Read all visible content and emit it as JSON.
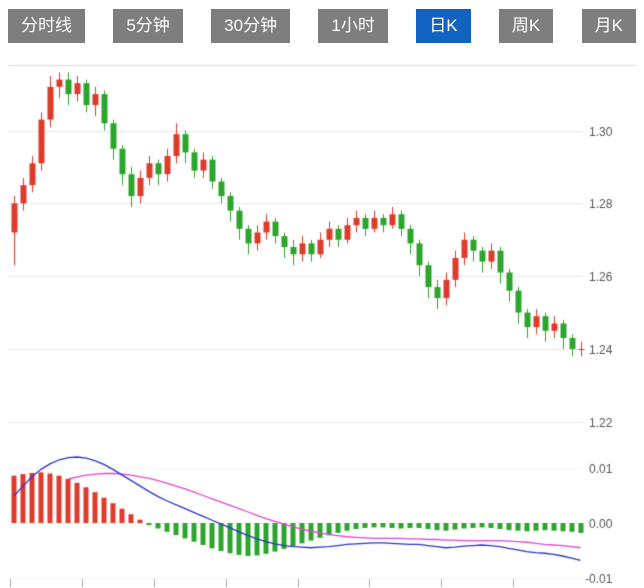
{
  "tabs": [
    {
      "label": "分时线",
      "active": false
    },
    {
      "label": "5分钟",
      "active": false
    },
    {
      "label": "30分钟",
      "active": false
    },
    {
      "label": "1小时",
      "active": false
    },
    {
      "label": "日K",
      "active": true
    },
    {
      "label": "周K",
      "active": false
    },
    {
      "label": "月K",
      "active": false
    }
  ],
  "colors": {
    "up": "#dd3b2b",
    "down": "#2ca52c",
    "dif_line": "#2b35c8",
    "dea_line": "#e544d5",
    "grid": "#e8e8e8",
    "grid_light": "#f2f2f2",
    "panel_border": "#d9d9d9",
    "axis_text": "#555555",
    "tab_bg": "#7e7e7e",
    "tab_active_bg": "#1262c2"
  },
  "chart_data": [
    {
      "type": "candlestick",
      "title": "",
      "legend": "none",
      "grid": "horizontal",
      "axis_side": "right",
      "y_tick_labels": [
        "1.30",
        "1.28",
        "1.26",
        "1.24",
        "1.22"
      ],
      "y_ticks": [
        1.3,
        1.28,
        1.26,
        1.24,
        1.22
      ],
      "ylim": [
        1.215,
        1.318
      ],
      "candles_ohlc": [
        [
          1.272,
          1.282,
          1.263,
          1.28
        ],
        [
          1.28,
          1.287,
          1.278,
          1.285
        ],
        [
          1.285,
          1.293,
          1.283,
          1.291
        ],
        [
          1.291,
          1.305,
          1.289,
          1.303
        ],
        [
          1.303,
          1.315,
          1.301,
          1.312
        ],
        [
          1.312,
          1.316,
          1.309,
          1.314
        ],
        [
          1.314,
          1.316,
          1.307,
          1.31
        ],
        [
          1.31,
          1.315,
          1.308,
          1.313
        ],
        [
          1.313,
          1.314,
          1.305,
          1.307
        ],
        [
          1.307,
          1.312,
          1.304,
          1.31
        ],
        [
          1.31,
          1.311,
          1.3,
          1.302
        ],
        [
          1.302,
          1.303,
          1.292,
          1.295
        ],
        [
          1.295,
          1.296,
          1.285,
          1.288
        ],
        [
          1.288,
          1.29,
          1.279,
          1.282
        ],
        [
          1.282,
          1.289,
          1.28,
          1.287
        ],
        [
          1.287,
          1.293,
          1.285,
          1.291
        ],
        [
          1.291,
          1.292,
          1.285,
          1.288
        ],
        [
          1.288,
          1.295,
          1.286,
          1.293
        ],
        [
          1.293,
          1.302,
          1.291,
          1.299
        ],
        [
          1.299,
          1.3,
          1.291,
          1.294
        ],
        [
          1.294,
          1.295,
          1.287,
          1.289
        ],
        [
          1.289,
          1.294,
          1.287,
          1.292
        ],
        [
          1.292,
          1.293,
          1.284,
          1.286
        ],
        [
          1.286,
          1.287,
          1.28,
          1.282
        ],
        [
          1.282,
          1.283,
          1.275,
          1.278
        ],
        [
          1.278,
          1.279,
          1.27,
          1.273
        ],
        [
          1.273,
          1.274,
          1.266,
          1.269
        ],
        [
          1.269,
          1.274,
          1.267,
          1.272
        ],
        [
          1.272,
          1.277,
          1.27,
          1.275
        ],
        [
          1.275,
          1.276,
          1.269,
          1.271
        ],
        [
          1.271,
          1.272,
          1.265,
          1.268
        ],
        [
          1.268,
          1.27,
          1.263,
          1.266
        ],
        [
          1.266,
          1.271,
          1.264,
          1.269
        ],
        [
          1.269,
          1.27,
          1.264,
          1.266
        ],
        [
          1.266,
          1.272,
          1.265,
          1.27
        ],
        [
          1.27,
          1.275,
          1.268,
          1.273
        ],
        [
          1.273,
          1.274,
          1.268,
          1.27
        ],
        [
          1.27,
          1.276,
          1.269,
          1.274
        ],
        [
          1.274,
          1.278,
          1.272,
          1.276
        ],
        [
          1.276,
          1.277,
          1.271,
          1.273
        ],
        [
          1.273,
          1.278,
          1.272,
          1.276
        ],
        [
          1.276,
          1.277,
          1.272,
          1.274
        ],
        [
          1.274,
          1.279,
          1.273,
          1.277
        ],
        [
          1.277,
          1.278,
          1.271,
          1.273
        ],
        [
          1.273,
          1.274,
          1.266,
          1.269
        ],
        [
          1.269,
          1.27,
          1.26,
          1.263
        ],
        [
          1.263,
          1.264,
          1.254,
          1.257
        ],
        [
          1.257,
          1.259,
          1.251,
          1.254
        ],
        [
          1.254,
          1.261,
          1.252,
          1.259
        ],
        [
          1.259,
          1.267,
          1.257,
          1.265
        ],
        [
          1.265,
          1.272,
          1.263,
          1.27
        ],
        [
          1.27,
          1.271,
          1.264,
          1.267
        ],
        [
          1.267,
          1.268,
          1.261,
          1.264
        ],
        [
          1.264,
          1.269,
          1.262,
          1.267
        ],
        [
          1.267,
          1.268,
          1.258,
          1.261
        ],
        [
          1.261,
          1.262,
          1.253,
          1.256
        ],
        [
          1.256,
          1.257,
          1.247,
          1.25
        ],
        [
          1.25,
          1.251,
          1.243,
          1.246
        ],
        [
          1.246,
          1.251,
          1.244,
          1.249
        ],
        [
          1.249,
          1.25,
          1.242,
          1.245
        ],
        [
          1.245,
          1.249,
          1.243,
          1.247
        ],
        [
          1.247,
          1.248,
          1.24,
          1.243
        ],
        [
          1.243,
          1.244,
          1.238,
          1.24
        ],
        [
          1.24,
          1.242,
          1.238,
          1.24
        ]
      ]
    },
    {
      "type": "macd",
      "title": "",
      "grid": "horizontal",
      "axis_side": "right",
      "y_tick_labels": [
        "0.01",
        "0.00",
        "-0.01"
      ],
      "y_ticks": [
        0.01,
        0.0,
        -0.01
      ],
      "ylim": [
        -0.011,
        0.0125
      ],
      "hist": [
        0.0086,
        0.0089,
        0.0091,
        0.0092,
        0.009,
        0.0086,
        0.008,
        0.0073,
        0.0065,
        0.0056,
        0.0046,
        0.0036,
        0.0026,
        0.0016,
        0.0006,
        -0.0004,
        -0.001,
        -0.0016,
        -0.0022,
        -0.0028,
        -0.0034,
        -0.004,
        -0.0046,
        -0.0051,
        -0.0055,
        -0.0058,
        -0.006,
        -0.0059,
        -0.0056,
        -0.0052,
        -0.0047,
        -0.0042,
        -0.0037,
        -0.0032,
        -0.0027,
        -0.0022,
        -0.0018,
        -0.0014,
        -0.0011,
        -0.0009,
        -0.0008,
        -0.0008,
        -0.0009,
        -0.001,
        -0.0009,
        -0.0009,
        -0.0011,
        -0.0013,
        -0.0014,
        -0.0012,
        -0.001,
        -0.0009,
        -0.0008,
        -0.0009,
        -0.0011,
        -0.0013,
        -0.0014,
        -0.0015,
        -0.0014,
        -0.0013,
        -0.0014,
        -0.0015,
        -0.0016,
        -0.0018
      ],
      "dif": [
        0.005,
        0.0068,
        0.0085,
        0.0098,
        0.0108,
        0.0115,
        0.0119,
        0.012,
        0.0118,
        0.0113,
        0.0106,
        0.0097,
        0.0087,
        0.0077,
        0.0067,
        0.0057,
        0.0048,
        0.004,
        0.0033,
        0.0026,
        0.0019,
        0.0012,
        0.0005,
        -0.0002,
        -0.0009,
        -0.0016,
        -0.0023,
        -0.0029,
        -0.0034,
        -0.0038,
        -0.0041,
        -0.0043,
        -0.0044,
        -0.0045,
        -0.0044,
        -0.0043,
        -0.0041,
        -0.0039,
        -0.0038,
        -0.0037,
        -0.0036,
        -0.0036,
        -0.0037,
        -0.0038,
        -0.0039,
        -0.0039,
        -0.0041,
        -0.0043,
        -0.0045,
        -0.0044,
        -0.0042,
        -0.0041,
        -0.004,
        -0.0041,
        -0.0043,
        -0.0046,
        -0.0049,
        -0.0052,
        -0.0054,
        -0.0055,
        -0.0057,
        -0.006,
        -0.0064,
        -0.0068
      ],
      "dea": [
        null,
        null,
        null,
        null,
        null,
        null,
        0.008,
        0.0084,
        0.0087,
        0.0089,
        0.009,
        0.009,
        0.0089,
        0.0087,
        0.0084,
        0.0081,
        0.0077,
        0.0072,
        0.0067,
        0.0062,
        0.0056,
        0.005,
        0.0044,
        0.0038,
        0.0032,
        0.0026,
        0.002,
        0.0014,
        0.0008,
        0.0003,
        -0.0002,
        -0.0007,
        -0.0011,
        -0.0015,
        -0.0018,
        -0.0021,
        -0.0023,
        -0.0025,
        -0.0026,
        -0.0027,
        -0.0028,
        -0.0028,
        -0.0028,
        -0.0028,
        -0.0029,
        -0.0029,
        -0.003,
        -0.003,
        -0.0031,
        -0.0031,
        -0.0032,
        -0.0032,
        -0.0032,
        -0.0032,
        -0.0032,
        -0.0033,
        -0.0034,
        -0.0035,
        -0.0037,
        -0.0039,
        -0.004,
        -0.0041,
        -0.0043,
        -0.0045
      ]
    }
  ]
}
